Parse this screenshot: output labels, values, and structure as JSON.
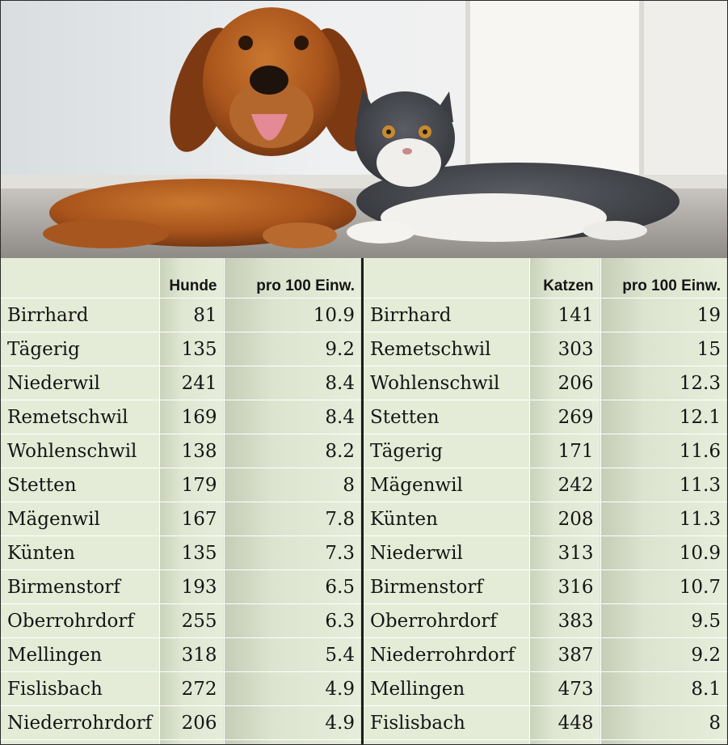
{
  "colors": {
    "cell_bg": "#e4ecd7",
    "divider": "#1c1c1c",
    "grid": "#ffffff"
  },
  "photo": {
    "icon": "dog-and-cat-photo"
  },
  "chart_data": [
    {
      "type": "table",
      "columns": [
        "",
        "Hunde",
        "pro 100 Einw."
      ],
      "rows": [
        [
          "Birrhard",
          81,
          10.9
        ],
        [
          "Tägerig",
          135,
          9.2
        ],
        [
          "Niederwil",
          241,
          8.4
        ],
        [
          "Remetschwil",
          169,
          8.4
        ],
        [
          "Wohlenschwil",
          138,
          8.2
        ],
        [
          "Stetten",
          179,
          8
        ],
        [
          "Mägenwil",
          167,
          7.8
        ],
        [
          "Künten",
          135,
          7.3
        ],
        [
          "Birmenstorf",
          193,
          6.5
        ],
        [
          "Oberrohrdorf",
          255,
          6.3
        ],
        [
          "Mellingen",
          318,
          5.4
        ],
        [
          "Fislisbach",
          272,
          4.9
        ],
        [
          "Niederrohrdorf",
          206,
          4.9
        ]
      ]
    },
    {
      "type": "table",
      "columns": [
        "",
        "Katzen",
        "pro 100 Einw."
      ],
      "rows": [
        [
          "Birrhard",
          141,
          19
        ],
        [
          "Remetschwil",
          303,
          15
        ],
        [
          "Wohlenschwil",
          206,
          12.3
        ],
        [
          "Stetten",
          269,
          12.1
        ],
        [
          "Tägerig",
          171,
          11.6
        ],
        [
          "Mägenwil",
          242,
          11.3
        ],
        [
          "Künten",
          208,
          11.3
        ],
        [
          "Niederwil",
          313,
          10.9
        ],
        [
          "Birmenstorf",
          316,
          10.7
        ],
        [
          "Oberrohrdorf",
          383,
          9.5
        ],
        [
          "Niederrohrdorf",
          387,
          9.2
        ],
        [
          "Mellingen",
          473,
          8.1
        ],
        [
          "Fislisbach",
          448,
          8
        ]
      ]
    }
  ]
}
